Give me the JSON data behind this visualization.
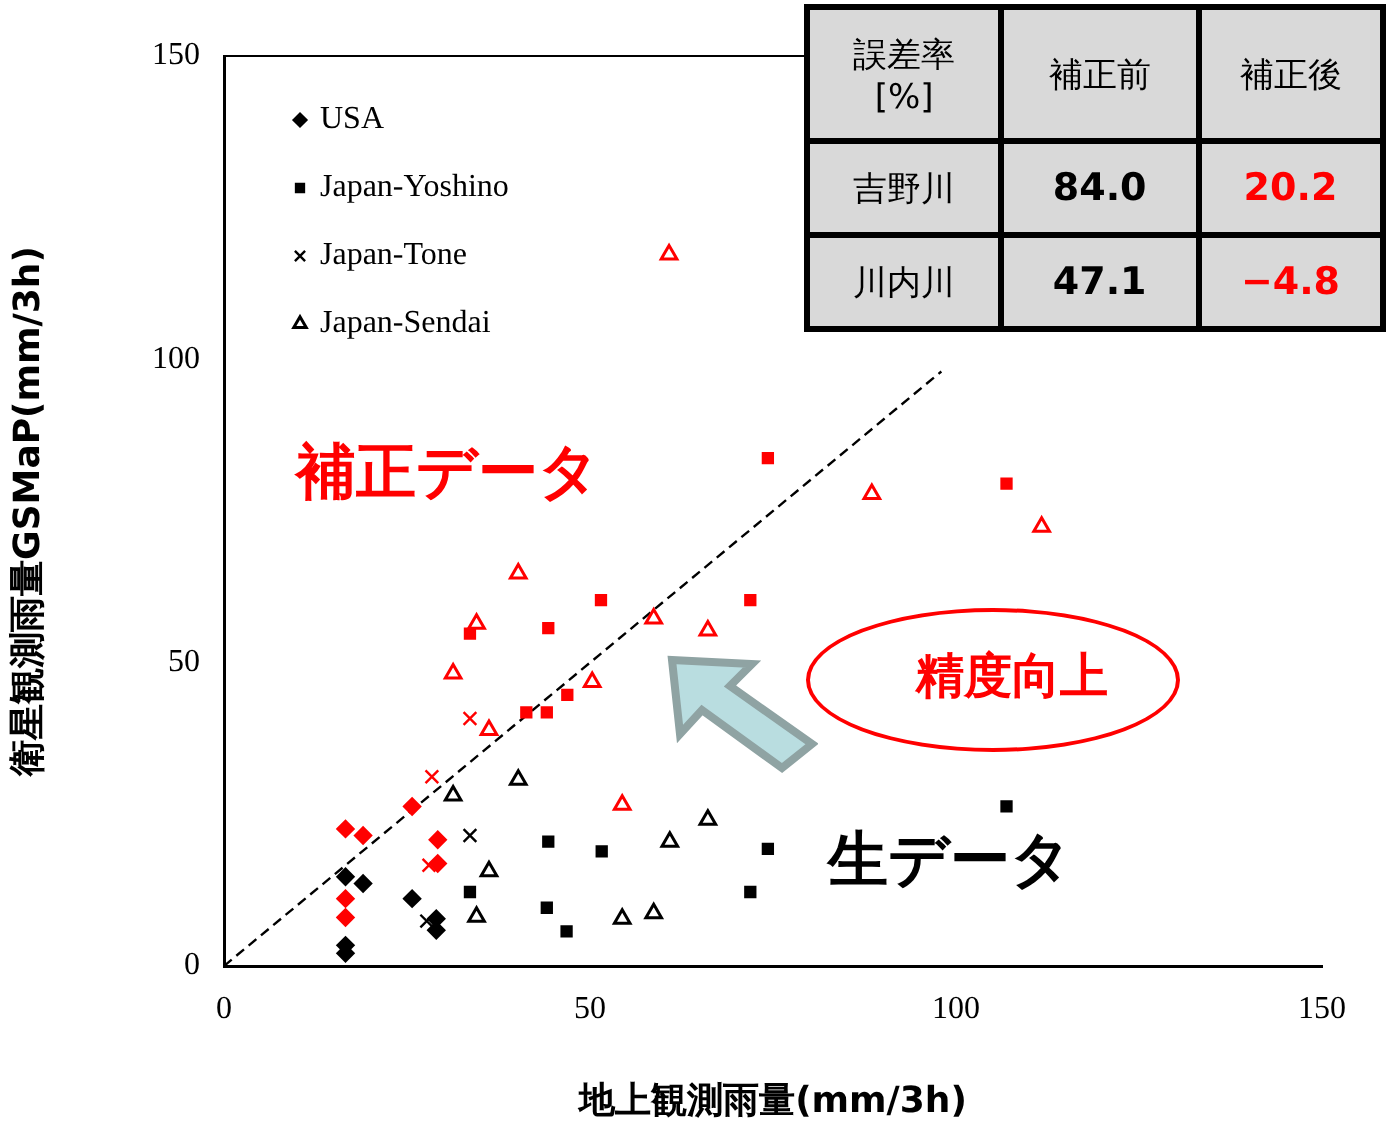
{
  "chart_data": {
    "type": "scatter",
    "xlabel": "地上観測雨量(mm/3h)",
    "ylabel": "衛星観測雨量GSMaP(mm/3h)",
    "xlim": [
      0,
      150
    ],
    "ylim": [
      0,
      150
    ],
    "xticks": [
      0,
      50,
      100,
      150
    ],
    "yticks": [
      0,
      50,
      100,
      150
    ],
    "legend": "top left",
    "annotations": [
      "補正データ",
      "生データ",
      "精度向上",
      "誤差率\n[%]",
      "補正前",
      "補正後",
      "吉野川",
      "84.0",
      "20.2",
      "川内川",
      "47.1",
      "−4.8"
    ],
    "series": [
      {
        "name": "USA",
        "color": "#000000",
        "marker": "diamond",
        "x": [
          16.6,
          19.0,
          25.7,
          29.0,
          29.0,
          16.6,
          16.6
        ],
        "values": [
          14.7,
          13.6,
          11.1,
          7.8,
          5.9,
          3.4,
          2.1
        ]
      },
      {
        "name": "Japan-Yoshino",
        "color": "#000000",
        "marker": "square",
        "x": [
          44.3,
          51.6,
          74.3,
          33.6,
          44.1,
          46.8,
          71.9,
          106.9
        ],
        "values": [
          20.5,
          18.9,
          19.3,
          12.2,
          9.6,
          5.7,
          12.2,
          26.3
        ]
      },
      {
        "name": "Japan-Tone",
        "color": "#000000",
        "marker": "cross",
        "x": [
          33.6,
          27.7
        ],
        "values": [
          21.5,
          7.4
        ]
      },
      {
        "name": "Japan-Sendai",
        "color": "#000000",
        "marker": "triangle",
        "x": [
          31.3,
          36.2,
          34.5,
          40.2,
          60.9,
          66.1,
          54.4,
          58.7
        ],
        "values": [
          28.1,
          15.6,
          8.1,
          30.7,
          20.5,
          24.1,
          7.8,
          8.7
        ]
      },
      {
        "color": "#ff0000",
        "marker": "diamond",
        "x": [
          16.6,
          19.0,
          25.7,
          29.2,
          29.2,
          16.6,
          16.6
        ],
        "values": [
          22.6,
          21.5,
          26.3,
          20.8,
          16.9,
          11.1,
          8.0
        ]
      },
      {
        "color": "#ff0000",
        "marker": "square",
        "x": [
          74.3,
          51.5,
          71.9,
          44.3,
          33.6,
          46.9,
          41.3,
          44.1,
          106.9
        ],
        "values": [
          83.7,
          60.3,
          60.3,
          55.7,
          54.8,
          44.7,
          41.8,
          41.8,
          79.5
        ]
      },
      {
        "color": "#ff0000",
        "marker": "cross",
        "x": [
          28.4,
          28.0,
          33.6
        ],
        "values": [
          31.2,
          16.6,
          40.8
        ]
      },
      {
        "color": "#ff0000",
        "marker": "triangle",
        "x": [
          60.8,
          88.5,
          111.7,
          40.2,
          34.5,
          58.7,
          66.1,
          31.3,
          50.3,
          36.2,
          54.4
        ],
        "values": [
          117.3,
          77.8,
          72.4,
          64.7,
          56.4,
          57.3,
          55.3,
          48.2,
          46.8,
          38.9,
          26.6
        ]
      },
      {
        "type": "line",
        "color": "#000000",
        "marker": "none",
        "line_style": "dashed",
        "x": [
          0,
          98
        ],
        "values": [
          0,
          98
        ]
      }
    ]
  }
}
